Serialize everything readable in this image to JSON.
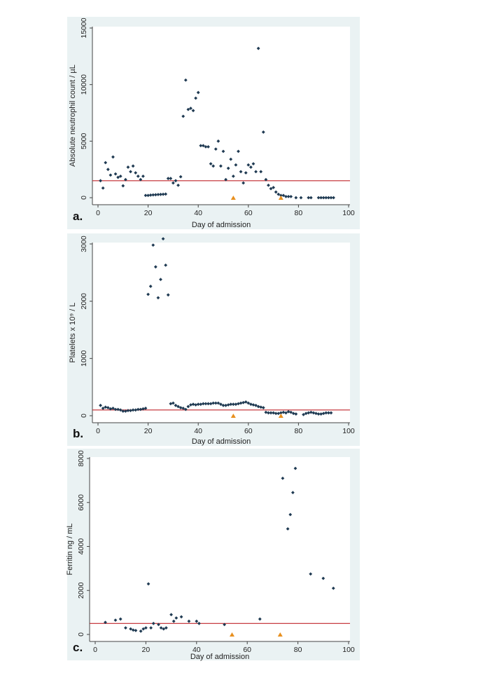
{
  "colors": {
    "point": "#1f3a52",
    "threshold": "#c0262c",
    "marker": "#e8901f",
    "panel_bg": "#eaf2f3",
    "plot_bg": "#ffffff"
  },
  "chart_data": [
    {
      "type": "scatter",
      "panel": "a.",
      "xlabel": "Day of admission",
      "ylabel": "Absolute neutrophil count / µL",
      "xlim": [
        0,
        100
      ],
      "ylim": [
        0,
        15000
      ],
      "xticks": [
        "0",
        "20",
        "40",
        "60",
        "80",
        "100"
      ],
      "yticks": [
        "0",
        "5000",
        "10000",
        "15000"
      ],
      "threshold": 1500,
      "markers_x": [
        54,
        73
      ],
      "x": [
        1,
        2,
        3,
        4,
        5,
        6,
        7,
        8,
        9,
        10,
        11,
        12,
        13,
        14,
        15,
        16,
        17,
        18,
        19,
        20,
        21,
        22,
        23,
        24,
        25,
        26,
        27,
        28,
        29,
        30,
        31,
        32,
        33,
        34,
        35,
        36,
        37,
        38,
        39,
        40,
        41,
        42,
        43,
        44,
        45,
        46,
        47,
        48,
        49,
        50,
        51,
        52,
        53,
        54,
        55,
        56,
        57,
        58,
        59,
        60,
        61,
        62,
        63,
        64,
        65,
        66,
        67,
        68,
        69,
        70,
        71,
        72,
        73,
        74,
        75,
        76,
        77,
        79,
        81,
        84,
        85,
        88,
        89,
        90,
        91,
        92,
        93,
        94
      ],
      "y": [
        1500,
        850,
        3100,
        2500,
        2000,
        3600,
        2100,
        1800,
        1900,
        1050,
        1600,
        2700,
        2300,
        2800,
        2200,
        1900,
        1600,
        1900,
        200,
        200,
        230,
        250,
        260,
        280,
        290,
        300,
        320,
        1700,
        1700,
        1300,
        1500,
        1100,
        1850,
        7200,
        10400,
        7800,
        7900,
        7700,
        8800,
        9300,
        4600,
        4600,
        4500,
        4500,
        3000,
        2800,
        4300,
        5000,
        2800,
        4100,
        1600,
        2600,
        3400,
        1900,
        2900,
        4100,
        2300,
        1300,
        2200,
        2900,
        2700,
        3000,
        2300,
        13200,
        2300,
        5800,
        1600,
        1100,
        800,
        900,
        500,
        300,
        200,
        200,
        100,
        100,
        100,
        0,
        0,
        0,
        0,
        0,
        0,
        0,
        0,
        0,
        0,
        0
      ]
    },
    {
      "type": "scatter",
      "panel": "b.",
      "xlabel": "Day of admission",
      "ylabel": "Platelets x 10⁹ / L",
      "xlim": [
        0,
        100
      ],
      "ylim": [
        0,
        3000
      ],
      "xticks": [
        "0",
        "20",
        "40",
        "60",
        "80",
        "100"
      ],
      "yticks": [
        "0",
        "1000",
        "2000",
        "3000"
      ],
      "threshold": 100,
      "markers_x": [
        54,
        73
      ],
      "x": [
        1,
        2,
        3,
        4,
        5,
        6,
        7,
        8,
        9,
        10,
        11,
        12,
        13,
        14,
        15,
        16,
        17,
        18,
        19,
        20,
        21,
        22,
        23,
        24,
        25,
        26,
        27,
        28,
        29,
        30,
        31,
        32,
        33,
        34,
        35,
        36,
        37,
        38,
        39,
        40,
        41,
        42,
        43,
        44,
        45,
        46,
        47,
        48,
        49,
        50,
        51,
        52,
        53,
        54,
        55,
        56,
        57,
        58,
        59,
        60,
        61,
        62,
        63,
        64,
        65,
        66,
        67,
        68,
        69,
        70,
        71,
        72,
        73,
        74,
        75,
        76,
        77,
        78,
        79,
        82,
        83,
        84,
        85,
        86,
        87,
        88,
        89,
        90,
        91,
        92,
        93
      ],
      "y": [
        180,
        130,
        150,
        140,
        120,
        130,
        110,
        110,
        100,
        80,
        80,
        90,
        90,
        100,
        100,
        110,
        110,
        120,
        130,
        2120,
        2260,
        2980,
        2600,
        2060,
        2380,
        3090,
        2630,
        2110,
        210,
        220,
        180,
        160,
        140,
        130,
        110,
        160,
        190,
        200,
        190,
        200,
        200,
        210,
        210,
        210,
        210,
        220,
        220,
        220,
        200,
        180,
        180,
        190,
        200,
        200,
        200,
        210,
        220,
        230,
        240,
        220,
        200,
        190,
        180,
        160,
        150,
        140,
        60,
        50,
        50,
        50,
        40,
        40,
        50,
        60,
        50,
        70,
        60,
        40,
        30,
        20,
        40,
        50,
        60,
        50,
        40,
        30,
        30,
        40,
        50,
        50,
        50
      ]
    },
    {
      "type": "scatter",
      "panel": "c.",
      "xlabel": "Day of admission",
      "ylabel": "Ferritin ng / mL",
      "xlim": [
        0,
        100
      ],
      "ylim": [
        0,
        8000
      ],
      "xticks": [
        "0",
        "20",
        "40",
        "60",
        "80",
        "100"
      ],
      "yticks": [
        "0",
        "2000",
        "4000",
        "6000",
        "8000"
      ],
      "threshold": 500,
      "markers_x": [
        54,
        73
      ],
      "x": [
        4,
        8,
        10,
        12,
        14,
        15,
        16,
        18,
        19,
        20,
        21,
        22,
        23,
        25,
        26,
        27,
        28,
        30,
        31,
        32,
        34,
        37,
        40,
        41,
        51,
        65,
        74,
        76,
        77,
        78,
        79,
        85,
        90,
        94
      ],
      "y": [
        550,
        650,
        700,
        300,
        250,
        200,
        180,
        150,
        250,
        300,
        2300,
        300,
        500,
        450,
        300,
        250,
        300,
        900,
        600,
        750,
        800,
        600,
        600,
        500,
        450,
        700,
        7100,
        4800,
        5450,
        6450,
        7550,
        2750,
        2550,
        2100
      ]
    }
  ]
}
